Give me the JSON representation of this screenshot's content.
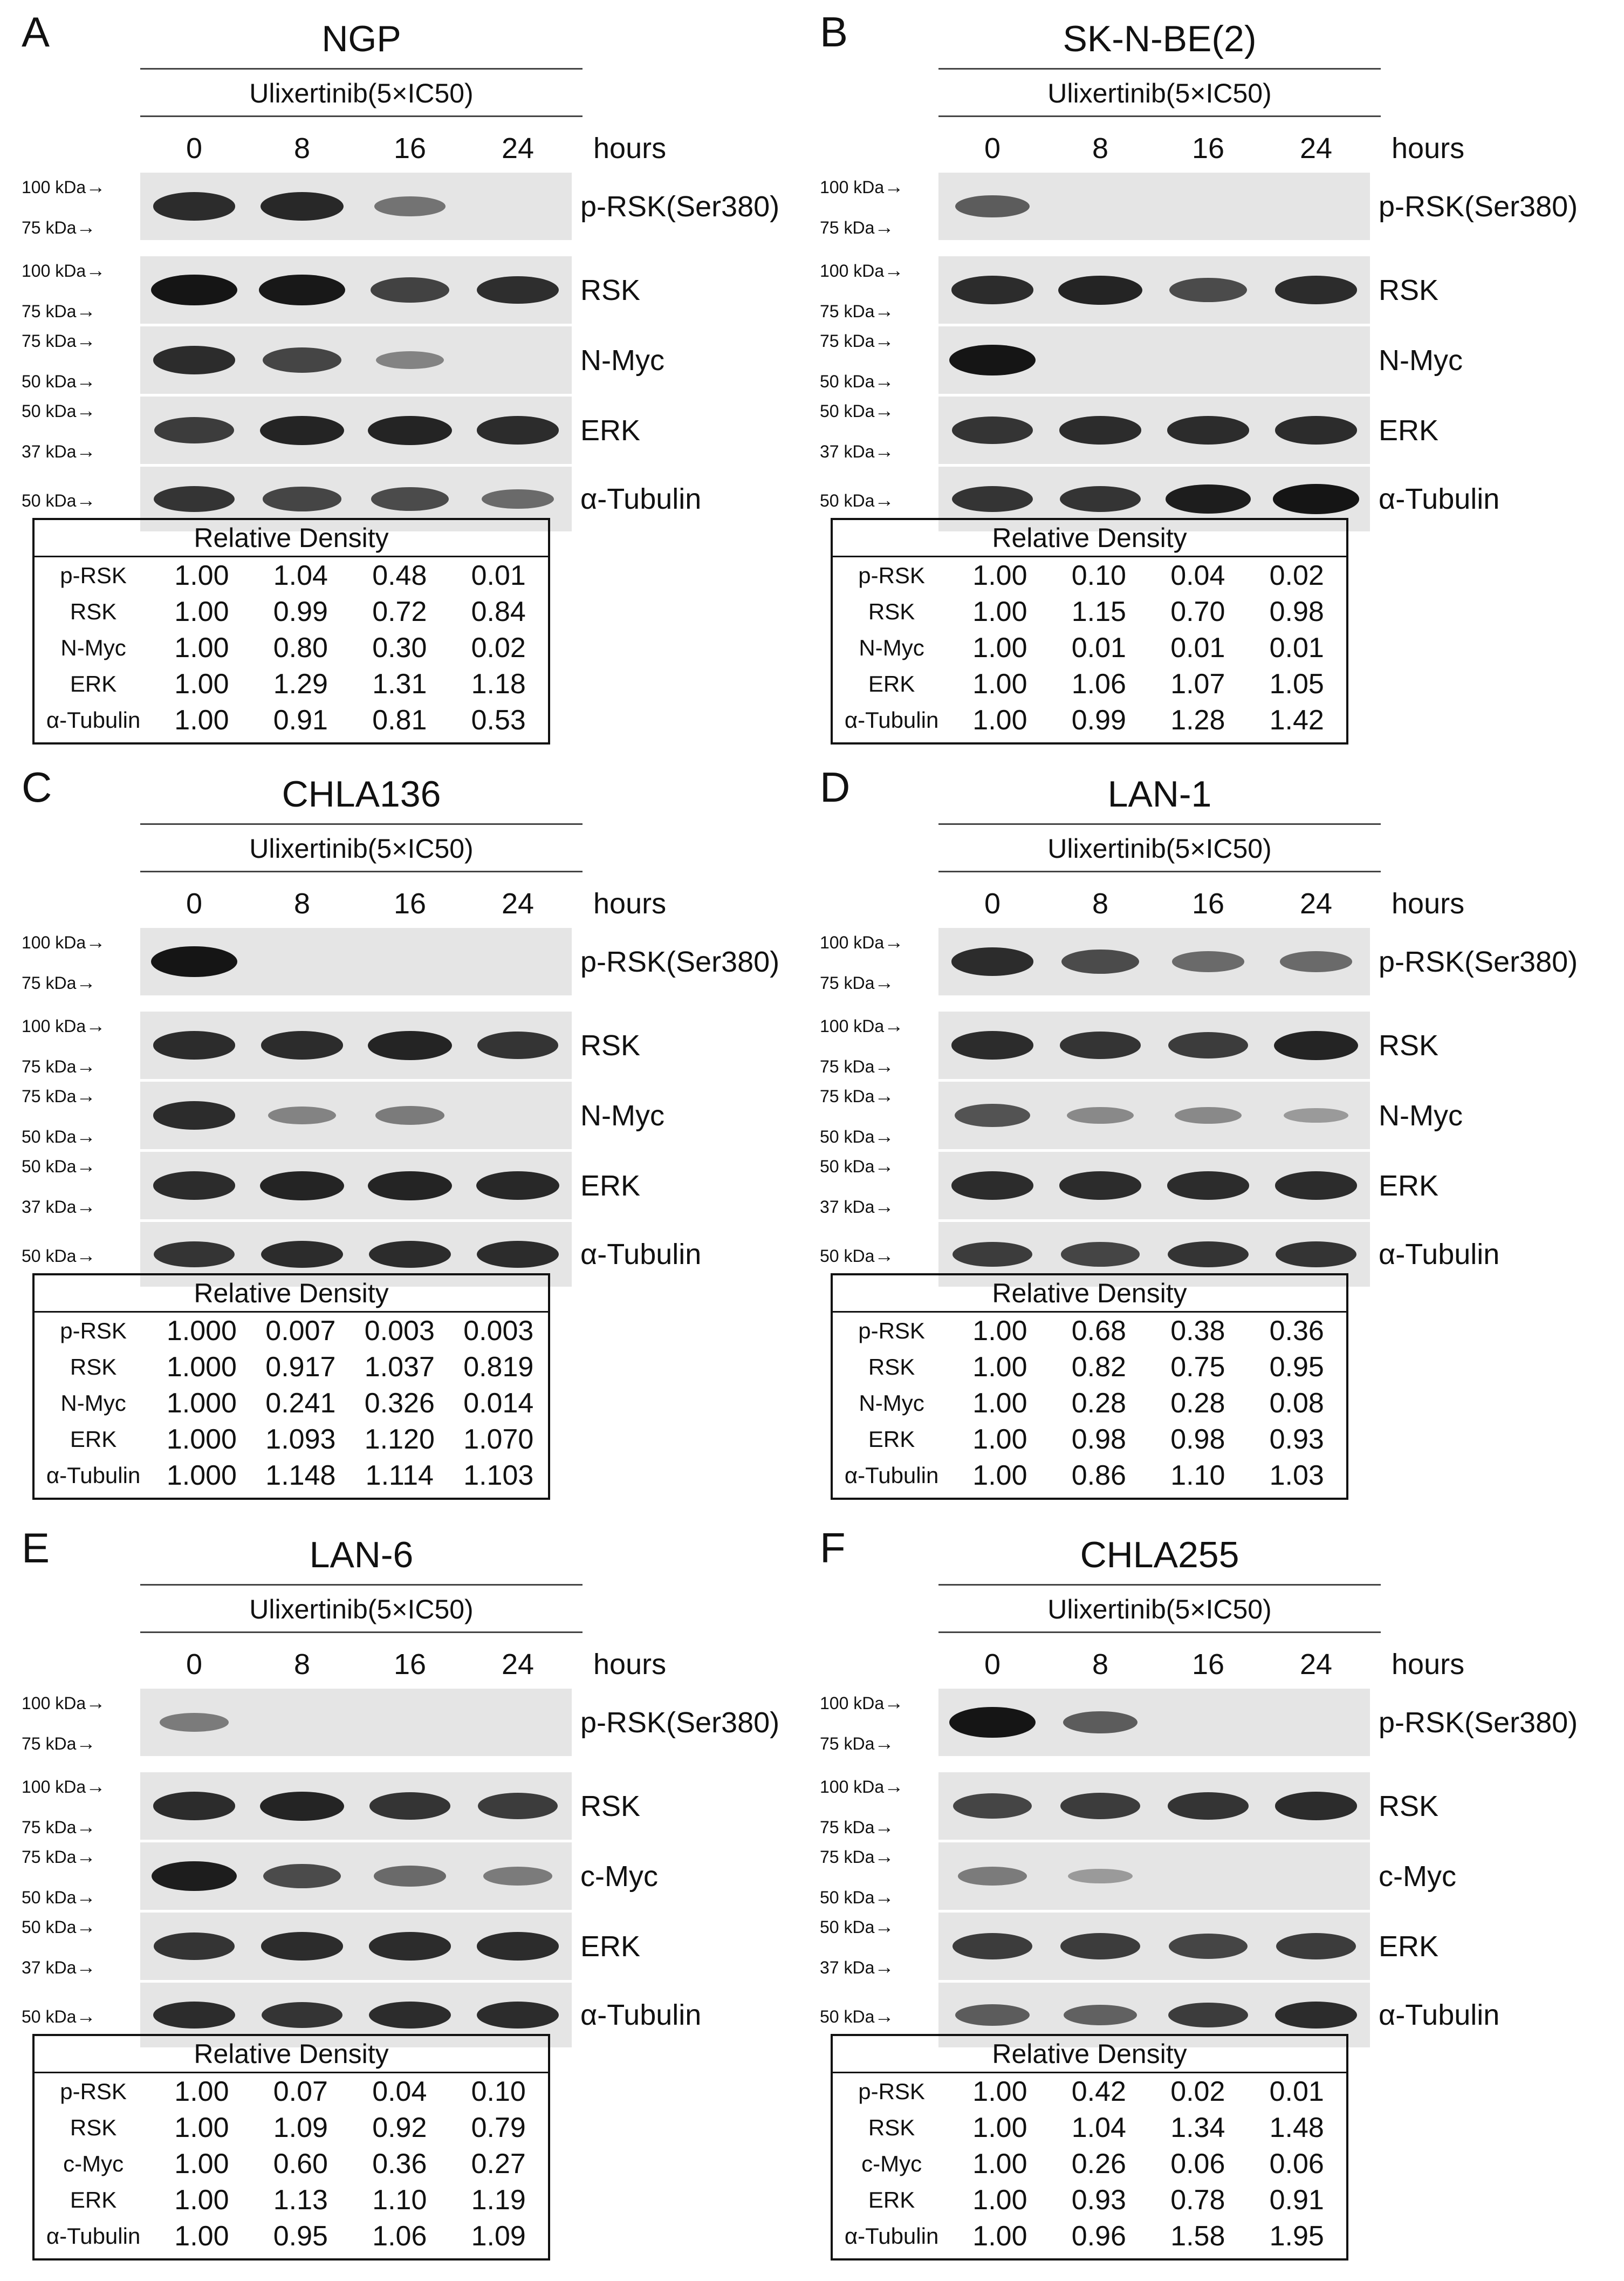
{
  "common": {
    "drug_label": "Ulixertinib(5×IC50)",
    "timepoints": [
      "0",
      "8",
      "16",
      "24"
    ],
    "hours_label": "hours",
    "relative_density_label": "Relative Density"
  },
  "panels": [
    {
      "letter": "A",
      "title": "NGP",
      "blots": [
        {
          "protein": "p-RSK(Ser380)",
          "markers": [
            "100 kDa",
            "75 kDa"
          ],
          "bands": [
            0.85,
            0.88,
            0.4,
            0.0
          ]
        },
        {
          "protein": "RSK",
          "markers": [
            "100 kDa",
            "75 kDa"
          ],
          "bands": [
            1.0,
            0.99,
            0.72,
            0.84
          ]
        },
        {
          "protein": "N-Myc",
          "markers": [
            "75 kDa",
            "50 kDa"
          ],
          "bands": [
            0.85,
            0.7,
            0.3,
            0.0
          ]
        },
        {
          "protein": "ERK",
          "markers": [
            "50 kDa",
            "37 kDa"
          ],
          "bands": [
            0.75,
            0.9,
            0.9,
            0.85
          ]
        },
        {
          "protein": "α-Tubulin",
          "markers": [
            "50 kDa"
          ],
          "bands": [
            0.8,
            0.7,
            0.65,
            0.45
          ]
        }
      ],
      "density": [
        {
          "name": "p-RSK",
          "values": [
            "1.00",
            "1.04",
            "0.48",
            "0.01"
          ]
        },
        {
          "name": "RSK",
          "values": [
            "1.00",
            "0.99",
            "0.72",
            "0.84"
          ]
        },
        {
          "name": "N-Myc",
          "values": [
            "1.00",
            "0.80",
            "0.30",
            "0.02"
          ]
        },
        {
          "name": "ERK",
          "values": [
            "1.00",
            "1.29",
            "1.31",
            "1.18"
          ]
        },
        {
          "name": "α-Tubulin",
          "values": [
            "1.00",
            "0.91",
            "0.81",
            "0.53"
          ]
        }
      ]
    },
    {
      "letter": "B",
      "title": "SK-N-BE(2)",
      "blots": [
        {
          "protein": "p-RSK(Ser380)",
          "markers": [
            "100 kDa",
            "75 kDa"
          ],
          "bands": [
            0.55,
            0.0,
            0.0,
            0.0
          ]
        },
        {
          "protein": "RSK",
          "markers": [
            "100 kDa",
            "75 kDa"
          ],
          "bands": [
            0.85,
            0.9,
            0.65,
            0.85
          ]
        },
        {
          "protein": "N-Myc",
          "markers": [
            "75 kDa",
            "50 kDa"
          ],
          "bands": [
            1.0,
            0.0,
            0.0,
            0.0
          ]
        },
        {
          "protein": "ERK",
          "markers": [
            "50 kDa",
            "37 kDa"
          ],
          "bands": [
            0.8,
            0.85,
            0.85,
            0.85
          ]
        },
        {
          "protein": "α-Tubulin",
          "markers": [
            "50 kDa"
          ],
          "bands": [
            0.8,
            0.8,
            0.95,
            1.0
          ]
        }
      ],
      "density": [
        {
          "name": "p-RSK",
          "values": [
            "1.00",
            "0.10",
            "0.04",
            "0.02"
          ]
        },
        {
          "name": "RSK",
          "values": [
            "1.00",
            "1.15",
            "0.70",
            "0.98"
          ]
        },
        {
          "name": "N-Myc",
          "values": [
            "1.00",
            "0.01",
            "0.01",
            "0.01"
          ]
        },
        {
          "name": "ERK",
          "values": [
            "1.00",
            "1.06",
            "1.07",
            "1.05"
          ]
        },
        {
          "name": "α-Tubulin",
          "values": [
            "1.00",
            "0.99",
            "1.28",
            "1.42"
          ]
        }
      ]
    },
    {
      "letter": "C",
      "title": "CHLA136",
      "blots": [
        {
          "protein": "p-RSK(Ser380)",
          "markers": [
            "100 kDa",
            "75 kDa"
          ],
          "bands": [
            1.0,
            0.0,
            0.0,
            0.0
          ]
        },
        {
          "protein": "RSK",
          "markers": [
            "100 kDa",
            "75 kDa"
          ],
          "bands": [
            0.85,
            0.85,
            0.9,
            0.8
          ]
        },
        {
          "protein": "N-Myc",
          "markers": [
            "75 kDa",
            "50 kDa"
          ],
          "bands": [
            0.85,
            0.3,
            0.35,
            0.0
          ]
        },
        {
          "protein": "ERK",
          "markers": [
            "50 kDa",
            "37 kDa"
          ],
          "bands": [
            0.85,
            0.9,
            0.9,
            0.88
          ]
        },
        {
          "protein": "α-Tubulin",
          "markers": [
            "50 kDa"
          ],
          "bands": [
            0.8,
            0.85,
            0.85,
            0.85
          ]
        }
      ],
      "density": [
        {
          "name": "p-RSK",
          "values": [
            "1.000",
            "0.007",
            "0.003",
            "0.003"
          ]
        },
        {
          "name": "RSK",
          "values": [
            "1.000",
            "0.917",
            "1.037",
            "0.819"
          ]
        },
        {
          "name": "N-Myc",
          "values": [
            "1.000",
            "0.241",
            "0.326",
            "0.014"
          ]
        },
        {
          "name": "ERK",
          "values": [
            "1.000",
            "1.093",
            "1.120",
            "1.070"
          ]
        },
        {
          "name": "α-Tubulin",
          "values": [
            "1.000",
            "1.148",
            "1.114",
            "1.103"
          ]
        }
      ]
    },
    {
      "letter": "D",
      "title": "LAN-1",
      "blots": [
        {
          "protein": "p-RSK(Ser380)",
          "markers": [
            "100 kDa",
            "75 kDa"
          ],
          "bands": [
            0.85,
            0.65,
            0.45,
            0.45
          ]
        },
        {
          "protein": "RSK",
          "markers": [
            "100 kDa",
            "75 kDa"
          ],
          "bands": [
            0.85,
            0.8,
            0.75,
            0.9
          ]
        },
        {
          "protein": "N-Myc",
          "markers": [
            "75 kDa",
            "50 kDa"
          ],
          "bands": [
            0.6,
            0.25,
            0.25,
            0.15
          ]
        },
        {
          "protein": "ERK",
          "markers": [
            "50 kDa",
            "37 kDa"
          ],
          "bands": [
            0.85,
            0.85,
            0.85,
            0.85
          ]
        },
        {
          "protein": "α-Tubulin",
          "markers": [
            "50 kDa"
          ],
          "bands": [
            0.75,
            0.7,
            0.8,
            0.8
          ]
        }
      ],
      "density": [
        {
          "name": "p-RSK",
          "values": [
            "1.00",
            "0.68",
            "0.38",
            "0.36"
          ]
        },
        {
          "name": "RSK",
          "values": [
            "1.00",
            "0.82",
            "0.75",
            "0.95"
          ]
        },
        {
          "name": "N-Myc",
          "values": [
            "1.00",
            "0.28",
            "0.28",
            "0.08"
          ]
        },
        {
          "name": "ERK",
          "values": [
            "1.00",
            "0.98",
            "0.98",
            "0.93"
          ]
        },
        {
          "name": "α-Tubulin",
          "values": [
            "1.00",
            "0.86",
            "1.10",
            "1.03"
          ]
        }
      ]
    },
    {
      "letter": "E",
      "title": "LAN-6",
      "blots": [
        {
          "protein": "p-RSK(Ser380)",
          "markers": [
            "100 kDa",
            "75 kDa"
          ],
          "bands": [
            0.35,
            0.0,
            0.0,
            0.0
          ]
        },
        {
          "protein": "RSK",
          "markers": [
            "100 kDa",
            "75 kDa"
          ],
          "bands": [
            0.85,
            0.9,
            0.8,
            0.75
          ]
        },
        {
          "protein": "c-Myc",
          "markers": [
            "75 kDa",
            "50 kDa"
          ],
          "bands": [
            0.95,
            0.65,
            0.45,
            0.35
          ]
        },
        {
          "protein": "ERK",
          "markers": [
            "50 kDa",
            "37 kDa"
          ],
          "bands": [
            0.8,
            0.85,
            0.85,
            0.85
          ]
        },
        {
          "protein": "α-Tubulin",
          "markers": [
            "50 kDa"
          ],
          "bands": [
            0.85,
            0.8,
            0.85,
            0.85
          ]
        }
      ],
      "density": [
        {
          "name": "p-RSK",
          "values": [
            "1.00",
            "0.07",
            "0.04",
            "0.10"
          ]
        },
        {
          "name": "RSK",
          "values": [
            "1.00",
            "1.09",
            "0.92",
            "0.79"
          ]
        },
        {
          "name": "c-Myc",
          "values": [
            "1.00",
            "0.60",
            "0.36",
            "0.27"
          ]
        },
        {
          "name": "ERK",
          "values": [
            "1.00",
            "1.13",
            "1.10",
            "1.19"
          ]
        },
        {
          "name": "α-Tubulin",
          "values": [
            "1.00",
            "0.95",
            "1.06",
            "1.09"
          ]
        }
      ]
    },
    {
      "letter": "F",
      "title": "CHLA255",
      "blots": [
        {
          "protein": "p-RSK(Ser380)",
          "markers": [
            "100 kDa",
            "75 kDa"
          ],
          "bands": [
            1.0,
            0.55,
            0.0,
            0.0
          ]
        },
        {
          "protein": "RSK",
          "markers": [
            "100 kDa",
            "75 kDa"
          ],
          "bands": [
            0.7,
            0.75,
            0.8,
            0.85
          ]
        },
        {
          "protein": "c-Myc",
          "markers": [
            "75 kDa",
            "50 kDa"
          ],
          "bands": [
            0.35,
            0.15,
            0.0,
            0.0
          ]
        },
        {
          "protein": "ERK",
          "markers": [
            "50 kDa",
            "37 kDa"
          ],
          "bands": [
            0.75,
            0.75,
            0.7,
            0.75
          ]
        },
        {
          "protein": "α-Tubulin",
          "markers": [
            "50 kDa"
          ],
          "bands": [
            0.55,
            0.5,
            0.75,
            0.85
          ]
        }
      ],
      "density": [
        {
          "name": "p-RSK",
          "values": [
            "1.00",
            "0.42",
            "0.02",
            "0.01"
          ]
        },
        {
          "name": "RSK",
          "values": [
            "1.00",
            "1.04",
            "1.34",
            "1.48"
          ]
        },
        {
          "name": "c-Myc",
          "values": [
            "1.00",
            "0.26",
            "0.06",
            "0.06"
          ]
        },
        {
          "name": "ERK",
          "values": [
            "1.00",
            "0.93",
            "0.78",
            "0.91"
          ]
        },
        {
          "name": "α-Tubulin",
          "values": [
            "1.00",
            "0.96",
            "1.58",
            "1.95"
          ]
        }
      ]
    }
  ]
}
